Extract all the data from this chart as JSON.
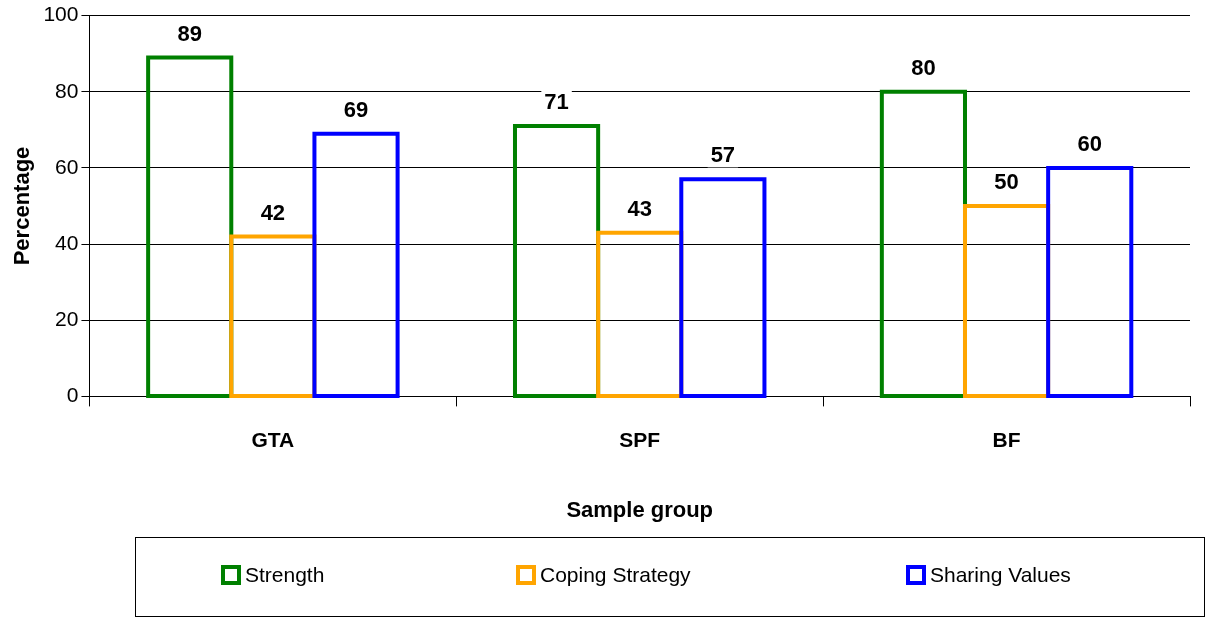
{
  "chart_data": {
    "type": "bar",
    "xlabel": "Sample group",
    "ylabel": "Percentage",
    "categories": [
      "GTA",
      "SPF",
      "BF"
    ],
    "series": [
      {
        "name": "Strength",
        "color": "#008000",
        "values": [
          89,
          71,
          80
        ]
      },
      {
        "name": "Coping Strategy",
        "color": "#ffa500",
        "values": [
          42,
          43,
          50
        ]
      },
      {
        "name": "Sharing Values",
        "color": "#0000ff",
        "values": [
          69,
          57,
          60
        ]
      }
    ],
    "ylim": [
      0,
      100
    ],
    "yticks": [
      0,
      20,
      40,
      60,
      80,
      100
    ],
    "grid": "y",
    "legend": "bottom",
    "data_labels": true
  }
}
